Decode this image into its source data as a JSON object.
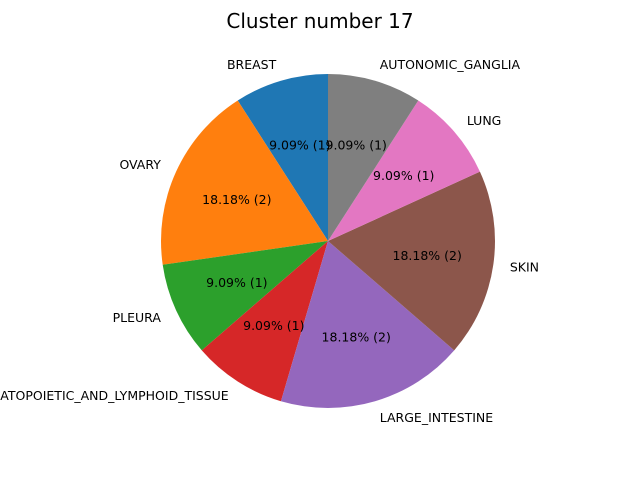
{
  "chart_data": {
    "type": "pie",
    "title": "Cluster number 17",
    "slices": [
      {
        "label": "BREAST",
        "count": 1,
        "percent_label": "9.09%  (1)",
        "color": "#1f77b4"
      },
      {
        "label": "OVARY",
        "count": 2,
        "percent_label": "18.18%  (2)",
        "color": "#ff7f0e"
      },
      {
        "label": "PLEURA",
        "count": 1,
        "percent_label": "9.09%  (1)",
        "color": "#2ca02c"
      },
      {
        "label": "HAEMATOPOIETIC_AND_LYMPHOID_TISSUE",
        "count": 1,
        "percent_label": "9.09%  (1)",
        "color": "#d62728"
      },
      {
        "label": "LARGE_INTESTINE",
        "count": 2,
        "percent_label": "18.18%  (2)",
        "color": "#9467bd"
      },
      {
        "label": "SKIN",
        "count": 2,
        "percent_label": "18.18%  (2)",
        "color": "#8c564b"
      },
      {
        "label": "LUNG",
        "count": 1,
        "percent_label": "9.09%  (1)",
        "color": "#e377c2"
      },
      {
        "label": "AUTONOMIC_GANGLIA",
        "count": 1,
        "percent_label": "9.09%  (1)",
        "color": "#7f7f7f"
      }
    ],
    "start_angle_deg": 90,
    "direction": "counterclockwise"
  }
}
